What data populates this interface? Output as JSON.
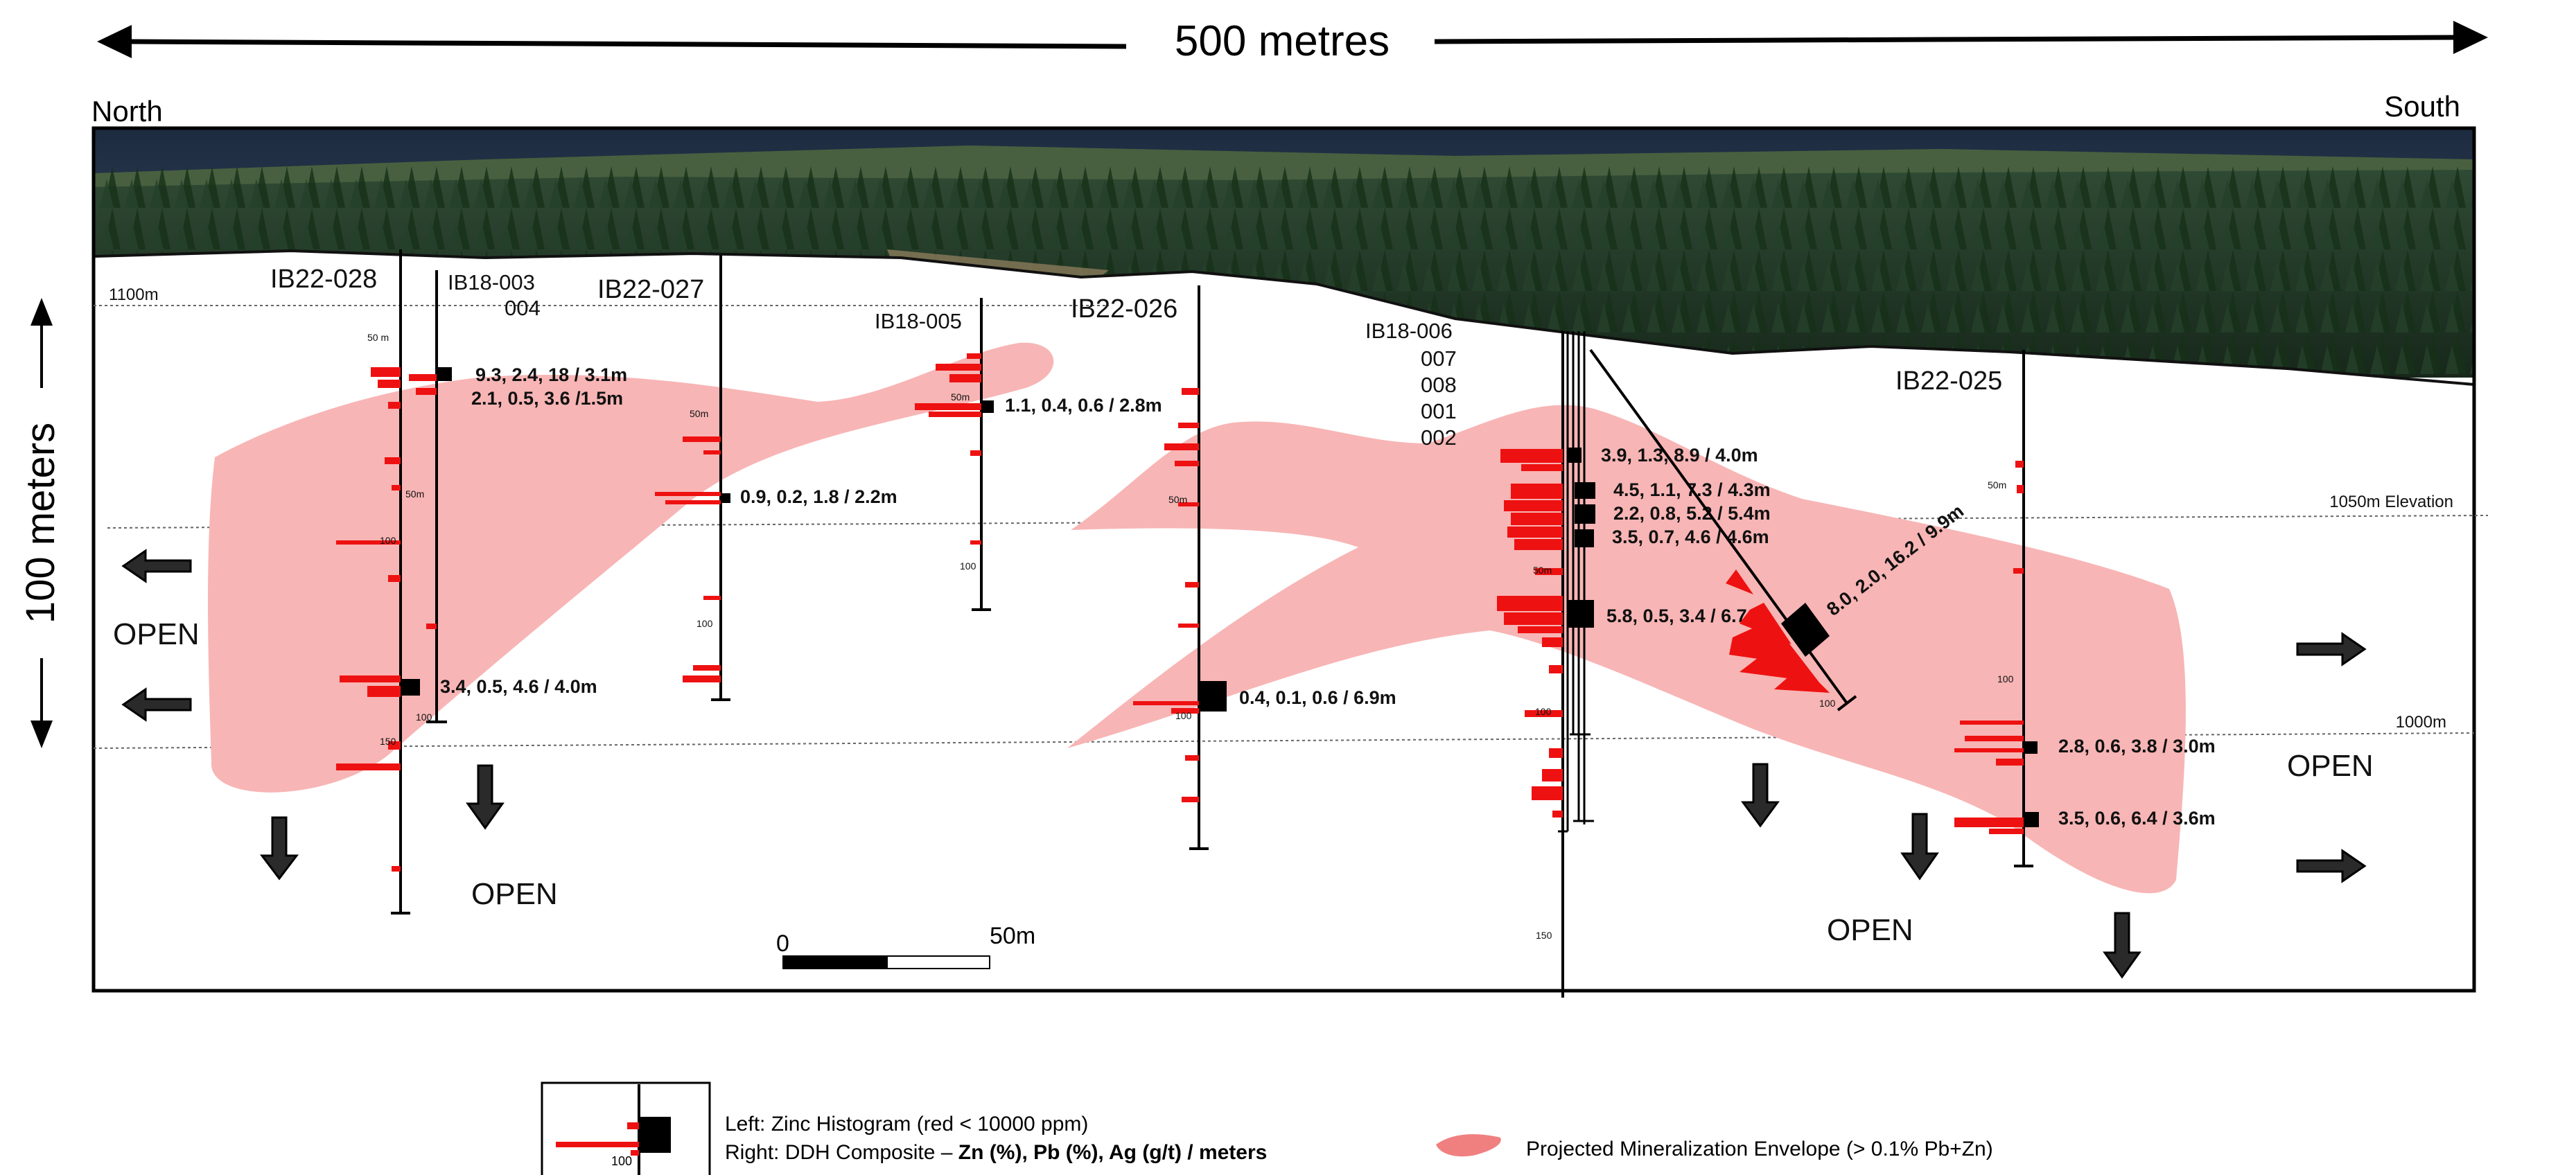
{
  "header": {
    "scale_label": "500 metres",
    "north_label": "North",
    "south_label": "South",
    "vertical_scale_label": "100 meters"
  },
  "elevations": {
    "e1100": "1100m",
    "e1050": "1050m Elevation",
    "e1000": "1000m"
  },
  "holes": {
    "ib22_028": "IB22-028",
    "ib18_003": "IB18-003",
    "h004": "004",
    "ib22_027": "IB22-027",
    "ib18_005": "IB18-005",
    "ib22_026": "IB22-026",
    "ib18_006": "IB18-006",
    "h007": "007",
    "h008": "008",
    "h001": "001",
    "h002": "002",
    "ib22_025": "IB22-025"
  },
  "composites": {
    "c1": "9.3, 2.4, 18 / 3.1m",
    "c2": "2.1, 0.5, 3.6 /1.5m",
    "c3": "0.9, 0.2, 1.8 / 2.2m",
    "c4": "1.1, 0.4, 0.6 / 2.8m",
    "c5": "3.4, 0.5, 4.6 / 4.0m",
    "c6": "0.4, 0.1, 0.6 / 6.9m",
    "c7": "3.9, 1.3, 8.9 / 4.0m",
    "c8": "4.5, 1.1, 7.3 / 4.3m",
    "c9": "2.2, 0.8, 5.2 / 5.4m",
    "c10": "3.5, 0.7, 4.6 / 4.6m",
    "c11": "5.8, 0.5, 3.4 / 6.7m",
    "c12": "8.0, 2.0, 16.2 / 9.9m",
    "c13": "2.8, 0.6, 3.8 / 3.0m",
    "c14": "3.5, 0.6, 6.4 / 3.6m"
  },
  "depth_ticks": {
    "d50": "50 m",
    "d50b": "50m",
    "d100": "100",
    "d150": "150"
  },
  "open_labels": {
    "open": "OPEN"
  },
  "scale_bar": {
    "zero": "0",
    "fifty": "50m"
  },
  "legend": {
    "left_line1": "Left: Zinc Histogram (red < 10000 ppm)",
    "left_line2_prefix": "Right: DDH Composite – ",
    "left_line2_bold": "Zn (%), Pb (%), Ag (g/t) / meters",
    "icon_depth": "100",
    "envelope_label": "Projected Mineralization Envelope (> 0.1% Pb+Zn)"
  },
  "colors": {
    "envelope": "#f8b5b5",
    "histogram": "#ee1111",
    "composite": "#000000",
    "trees_dark": "#1e3524",
    "sky": "#2c3e55"
  }
}
